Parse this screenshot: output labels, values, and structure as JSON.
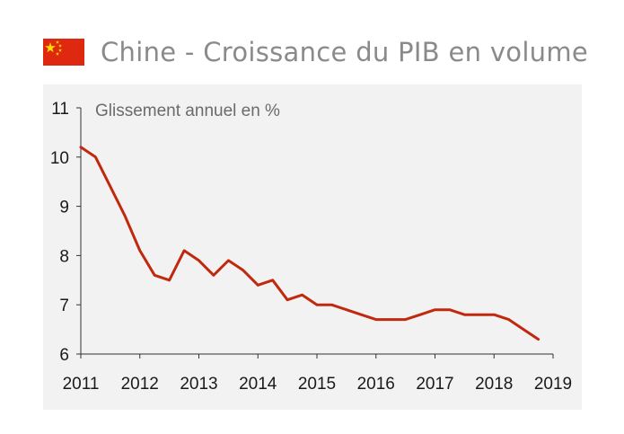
{
  "header": {
    "title": "Chine - Croissance du PIB en volume",
    "flag_icon": "china-flag-icon",
    "flag_colors": {
      "field": "#de2910",
      "stars": "#ffde00"
    }
  },
  "colors": {
    "line": "#c0290e",
    "axis": "#333333",
    "panel": "#f2f2f2"
  },
  "chart_data": {
    "type": "line",
    "title": "",
    "subtitle": "Glissement annuel en %",
    "xlabel": "",
    "ylabel": "",
    "xlim": [
      2011,
      2019
    ],
    "ylim": [
      6,
      11
    ],
    "x_ticks": [
      2011,
      2012,
      2013,
      2014,
      2015,
      2016,
      2017,
      2018,
      2019
    ],
    "y_ticks": [
      6,
      7,
      8,
      9,
      10,
      11
    ],
    "grid": false,
    "series": [
      {
        "x": [
          2011.0,
          2011.25,
          2011.5,
          2011.75,
          2012.0,
          2012.25,
          2012.5,
          2012.75,
          2013.0,
          2013.25,
          2013.5,
          2013.75,
          2014.0,
          2014.25,
          2014.5,
          2014.75,
          2015.0,
          2015.25,
          2015.5,
          2015.75,
          2016.0,
          2016.25,
          2016.5,
          2016.75,
          2017.0,
          2017.25,
          2017.5,
          2017.75,
          2018.0,
          2018.25,
          2018.5,
          2018.75
        ],
        "values": [
          10.2,
          10.0,
          9.4,
          8.8,
          8.1,
          7.6,
          7.5,
          8.1,
          7.9,
          7.6,
          7.9,
          7.7,
          7.4,
          7.5,
          7.1,
          7.2,
          7.0,
          7.0,
          6.9,
          6.8,
          6.7,
          6.7,
          6.7,
          6.8,
          6.9,
          6.9,
          6.8,
          6.8,
          6.8,
          6.7,
          6.5,
          6.3
        ]
      }
    ]
  }
}
